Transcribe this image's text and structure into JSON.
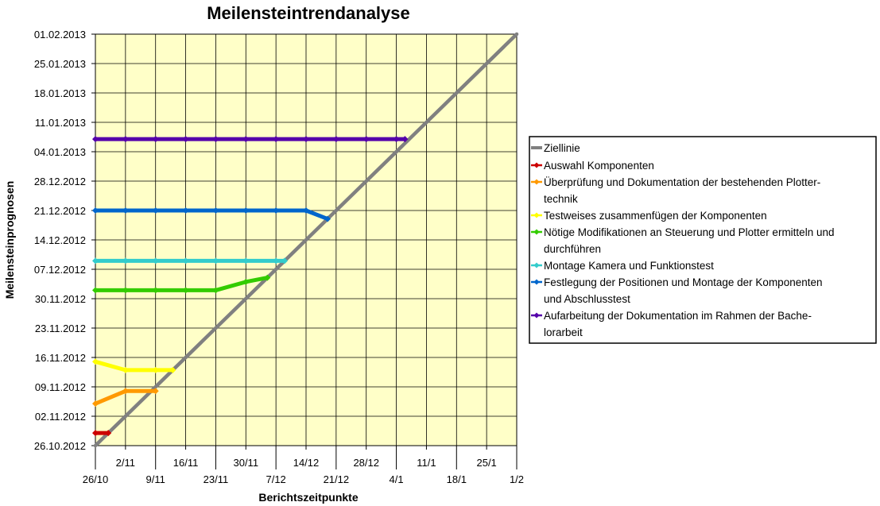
{
  "chart_data": {
    "type": "line",
    "title": "Meilensteintrendanalyse",
    "xlabel": "Berichtszeitpunkte",
    "ylabel": "Meilensteinprognosen",
    "x_axis": {
      "unit": "date",
      "min": "2012-10-26",
      "max": "2013-02-01",
      "ticks": [
        {
          "date": "2012-10-26",
          "label": "26/10"
        },
        {
          "date": "2012-11-02",
          "label": "2/11"
        },
        {
          "date": "2012-11-09",
          "label": "9/11"
        },
        {
          "date": "2012-11-16",
          "label": "16/11"
        },
        {
          "date": "2012-11-23",
          "label": "23/11"
        },
        {
          "date": "2012-11-30",
          "label": "30/11"
        },
        {
          "date": "2012-12-07",
          "label": "7/12"
        },
        {
          "date": "2012-12-14",
          "label": "14/12"
        },
        {
          "date": "2012-12-21",
          "label": "21/12"
        },
        {
          "date": "2012-12-28",
          "label": "28/12"
        },
        {
          "date": "2013-01-04",
          "label": "4/1"
        },
        {
          "date": "2013-01-11",
          "label": "11/1"
        },
        {
          "date": "2013-01-18",
          "label": "18/1"
        },
        {
          "date": "2013-01-25",
          "label": "25/1"
        },
        {
          "date": "2013-02-01",
          "label": "1/2"
        }
      ]
    },
    "y_axis": {
      "unit": "date",
      "min": "2012-10-26",
      "max": "2013-02-01",
      "ticks": [
        {
          "date": "2012-10-26",
          "label": "26.10.2012"
        },
        {
          "date": "2012-11-02",
          "label": "02.11.2012"
        },
        {
          "date": "2012-11-09",
          "label": "09.11.2012"
        },
        {
          "date": "2012-11-16",
          "label": "16.11.2012"
        },
        {
          "date": "2012-11-23",
          "label": "23.11.2012"
        },
        {
          "date": "2012-11-30",
          "label": "30.11.2012"
        },
        {
          "date": "2012-12-07",
          "label": "07.12.2012"
        },
        {
          "date": "2012-12-14",
          "label": "14.12.2012"
        },
        {
          "date": "2012-12-21",
          "label": "21.12.2012"
        },
        {
          "date": "2012-12-28",
          "label": "28.12.2012"
        },
        {
          "date": "2013-01-04",
          "label": "04.01.2013"
        },
        {
          "date": "2013-01-11",
          "label": "11.01.2013"
        },
        {
          "date": "2013-01-18",
          "label": "18.01.2013"
        },
        {
          "date": "2013-01-25",
          "label": "25.01.2013"
        },
        {
          "date": "2013-02-01",
          "label": "01.02.2013"
        }
      ]
    },
    "grid": true,
    "plot_background": "#FFFFC8",
    "legend_position": "right",
    "series": [
      {
        "name": "Ziellinie",
        "color": "#808080",
        "points": [
          {
            "x": "2012-10-26",
            "y": "2012-10-26"
          },
          {
            "x": "2013-02-01",
            "y": "2013-02-01"
          }
        ]
      },
      {
        "name": "Auswahl Komponenten",
        "color": "#CC0000",
        "points": [
          {
            "x": "2012-10-26",
            "y": "2012-10-29"
          },
          {
            "x": "2012-10-29",
            "y": "2012-10-29"
          }
        ]
      },
      {
        "name": "Überprüfung und Dokumentation der bestehenden Plotter-technik",
        "color": "#FF9900",
        "points": [
          {
            "x": "2012-10-26",
            "y": "2012-11-05"
          },
          {
            "x": "2012-11-02",
            "y": "2012-11-08"
          },
          {
            "x": "2012-11-09",
            "y": "2012-11-08"
          }
        ]
      },
      {
        "name": "Testweises zusammenfügen der Komponenten",
        "color": "#FFFF00",
        "points": [
          {
            "x": "2012-10-26",
            "y": "2012-11-15"
          },
          {
            "x": "2012-11-02",
            "y": "2012-11-13"
          },
          {
            "x": "2012-11-09",
            "y": "2012-11-13"
          },
          {
            "x": "2012-11-13",
            "y": "2012-11-13"
          }
        ]
      },
      {
        "name": "Nötige Modifikationen an Steuerung und Plotter ermitteln und durchführen",
        "color": "#33CC00",
        "points": [
          {
            "x": "2012-10-26",
            "y": "2012-12-02"
          },
          {
            "x": "2012-11-02",
            "y": "2012-12-02"
          },
          {
            "x": "2012-11-09",
            "y": "2012-12-02"
          },
          {
            "x": "2012-11-16",
            "y": "2012-12-02"
          },
          {
            "x": "2012-11-23",
            "y": "2012-12-02"
          },
          {
            "x": "2012-11-30",
            "y": "2012-12-04"
          },
          {
            "x": "2012-12-05",
            "y": "2012-12-05"
          }
        ]
      },
      {
        "name": "Montage Kamera und Funktionstest",
        "color": "#33CCCC",
        "points": [
          {
            "x": "2012-10-26",
            "y": "2012-12-09"
          },
          {
            "x": "2012-11-02",
            "y": "2012-12-09"
          },
          {
            "x": "2012-11-09",
            "y": "2012-12-09"
          },
          {
            "x": "2012-11-16",
            "y": "2012-12-09"
          },
          {
            "x": "2012-11-23",
            "y": "2012-12-09"
          },
          {
            "x": "2012-11-30",
            "y": "2012-12-09"
          },
          {
            "x": "2012-12-07",
            "y": "2012-12-09"
          },
          {
            "x": "2012-12-09",
            "y": "2012-12-09"
          }
        ]
      },
      {
        "name": "Festlegung der Positionen und Montage der Komponenten und Abschlusstest",
        "color": "#0066CC",
        "points": [
          {
            "x": "2012-10-26",
            "y": "2012-12-21"
          },
          {
            "x": "2012-11-02",
            "y": "2012-12-21"
          },
          {
            "x": "2012-11-09",
            "y": "2012-12-21"
          },
          {
            "x": "2012-11-16",
            "y": "2012-12-21"
          },
          {
            "x": "2012-11-23",
            "y": "2012-12-21"
          },
          {
            "x": "2012-11-30",
            "y": "2012-12-21"
          },
          {
            "x": "2012-12-07",
            "y": "2012-12-21"
          },
          {
            "x": "2012-12-14",
            "y": "2012-12-21"
          },
          {
            "x": "2012-12-19",
            "y": "2012-12-19"
          }
        ]
      },
      {
        "name": "Aufarbeitung der Dokumentation im Rahmen der Bache-lorarbeit",
        "color": "#5500AA",
        "points": [
          {
            "x": "2012-10-26",
            "y": "2013-01-07"
          },
          {
            "x": "2012-11-02",
            "y": "2013-01-07"
          },
          {
            "x": "2012-11-09",
            "y": "2013-01-07"
          },
          {
            "x": "2012-11-16",
            "y": "2013-01-07"
          },
          {
            "x": "2012-11-23",
            "y": "2013-01-07"
          },
          {
            "x": "2012-11-30",
            "y": "2013-01-07"
          },
          {
            "x": "2012-12-07",
            "y": "2013-01-07"
          },
          {
            "x": "2012-12-14",
            "y": "2013-01-07"
          },
          {
            "x": "2012-12-21",
            "y": "2013-01-07"
          },
          {
            "x": "2012-12-28",
            "y": "2013-01-07"
          },
          {
            "x": "2013-01-04",
            "y": "2013-01-07"
          },
          {
            "x": "2013-01-06",
            "y": "2013-01-07"
          }
        ]
      }
    ],
    "legend": [
      {
        "series": 0,
        "lines": [
          "Ziellinie"
        ]
      },
      {
        "series": 1,
        "lines": [
          "Auswahl Komponenten"
        ]
      },
      {
        "series": 2,
        "lines": [
          "Überprüfung und Dokumentation der bestehenden Plotter-",
          "technik"
        ]
      },
      {
        "series": 3,
        "lines": [
          "Testweises zusammenfügen der Komponenten"
        ]
      },
      {
        "series": 4,
        "lines": [
          "Nötige Modifikationen an Steuerung und Plotter ermitteln und",
          "durchführen"
        ]
      },
      {
        "series": 5,
        "lines": [
          "Montage Kamera und Funktionstest"
        ]
      },
      {
        "series": 6,
        "lines": [
          "Festlegung der Positionen und Montage der Komponenten",
          "und Abschlusstest"
        ]
      },
      {
        "series": 7,
        "lines": [
          "Aufarbeitung der Dokumentation im Rahmen der Bache-",
          "lorarbeit"
        ]
      }
    ]
  }
}
